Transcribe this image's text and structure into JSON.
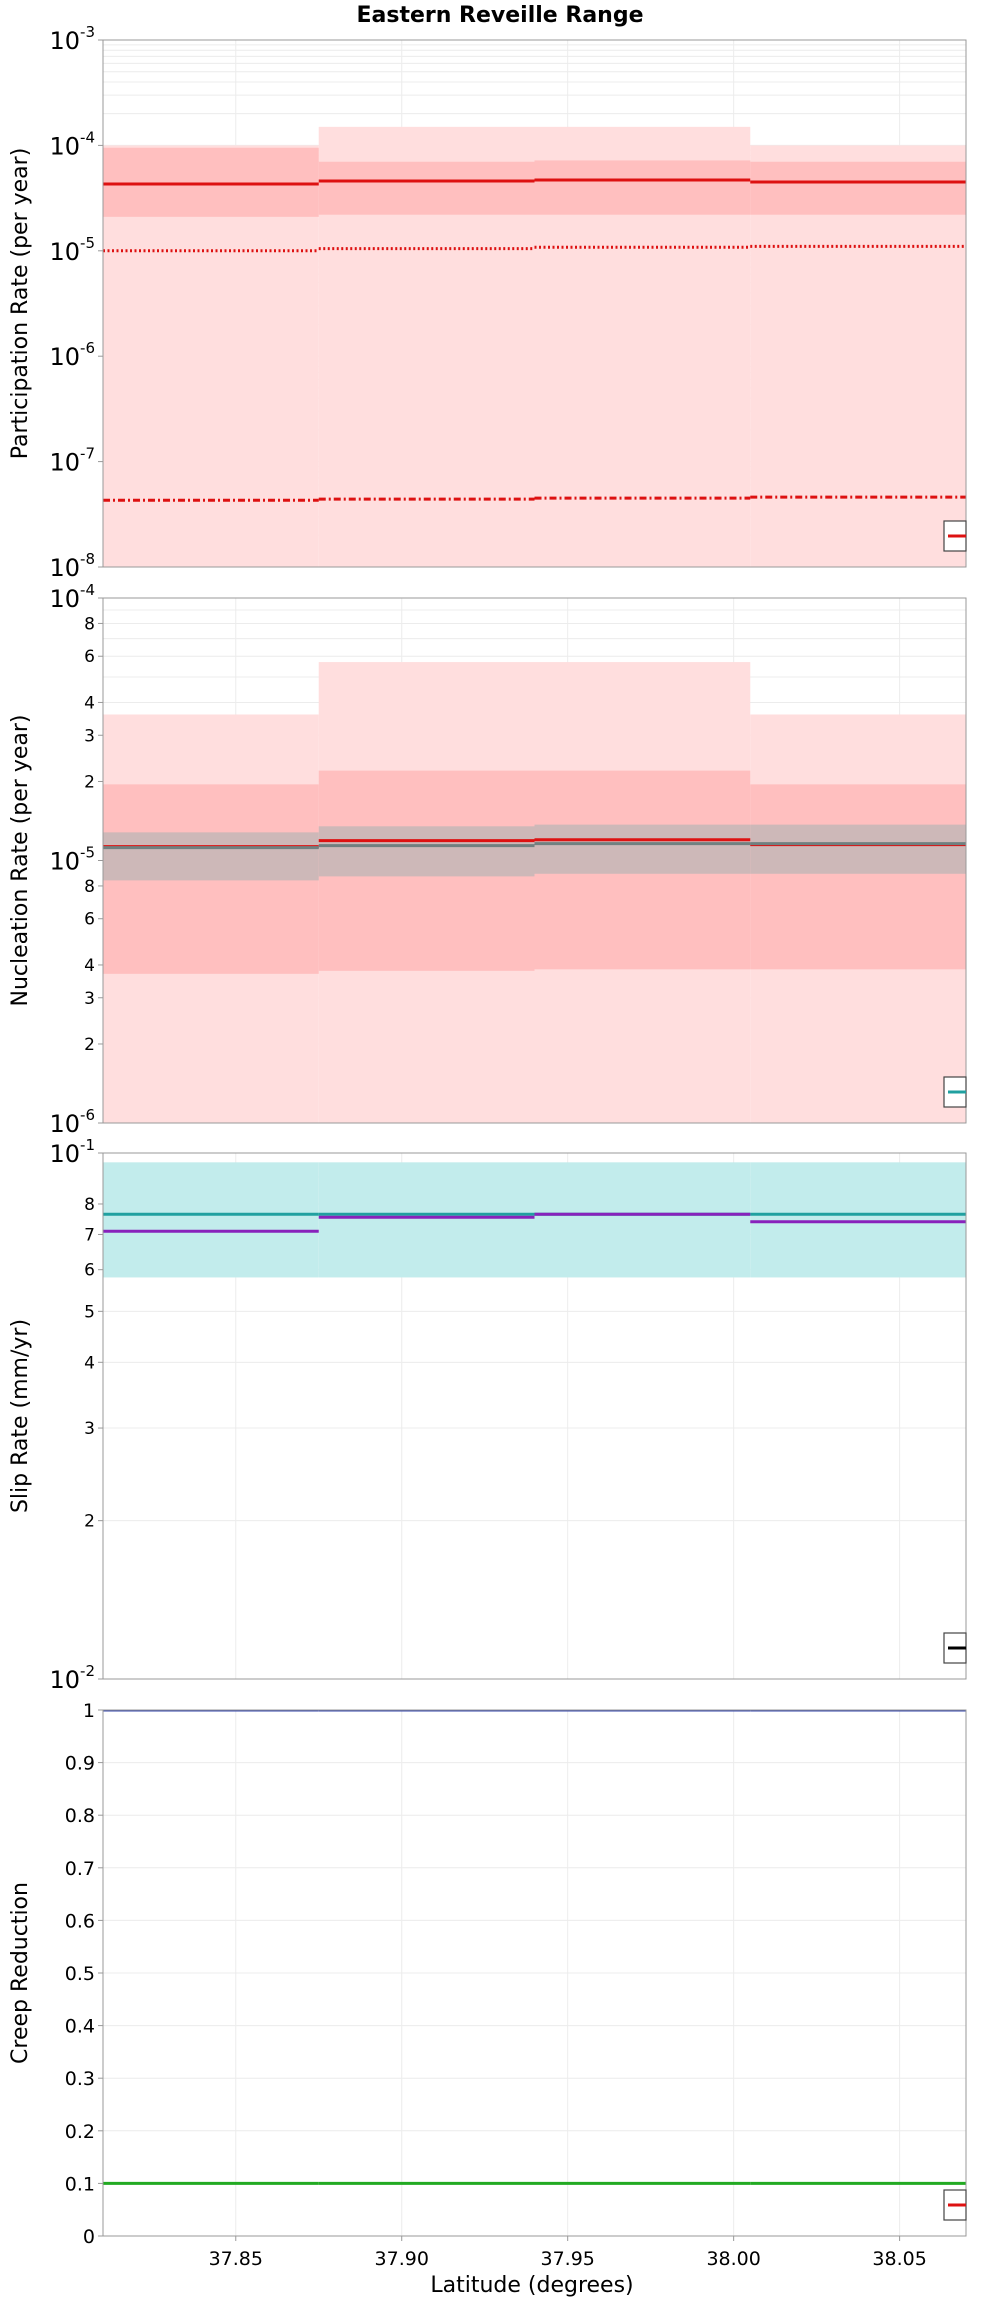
{
  "figure": {
    "title": "Eastern Reveille Range",
    "xlabel": "Latitude (degrees)"
  },
  "chart_data": [
    {
      "type": "line",
      "id": "participation",
      "title": "Eastern Reveille Range",
      "ylabel": "Participation Rate (per year)",
      "yscale": "log",
      "ylim": [
        1e-08,
        0.001
      ],
      "xlim": [
        37.81,
        38.07
      ],
      "x_ticks": [
        "37.85",
        "37.90",
        "37.95",
        "38.00",
        "38.05"
      ],
      "y_ticks": [
        {
          "value": 1e-08,
          "base": "10",
          "exp": "-8"
        },
        {
          "value": 1e-07,
          "base": "10",
          "exp": "-7"
        },
        {
          "value": 1e-06,
          "base": "10",
          "exp": "-6"
        },
        {
          "value": 1e-05,
          "base": "10",
          "exp": "-5"
        },
        {
          "value": 0.0001,
          "base": "10",
          "exp": "-4"
        },
        {
          "value": 0.001,
          "base": "10",
          "exp": "-3"
        }
      ],
      "segment_edges": [
        37.81,
        37.875,
        37.94,
        38.005,
        38.07
      ],
      "bands": [
        {
          "color": "#ffdede",
          "lower": [
            1e-08,
            1e-08,
            1e-08,
            1e-08
          ],
          "upper": [
            0.0001,
            0.00015,
            0.00015,
            0.0001
          ]
        },
        {
          "color": "#ffbfbf",
          "lower": [
            2.1e-05,
            2.2e-05,
            2.2e-05,
            2.2e-05
          ],
          "upper": [
            9.5e-05,
            7e-05,
            7.2e-05,
            7e-05
          ]
        }
      ],
      "series": [
        {
          "style": "solid",
          "color": "#dd1111",
          "values": [
            4.3e-05,
            4.6e-05,
            4.7e-05,
            4.5e-05
          ]
        },
        {
          "style": "dotted",
          "color": "#dd1111",
          "values": [
            1e-05,
            1.05e-05,
            1.08e-05,
            1.1e-05
          ]
        },
        {
          "style": "dashdot",
          "color": "#dd1111",
          "values": [
            4.3e-08,
            4.4e-08,
            4.5e-08,
            4.6e-08
          ]
        }
      ],
      "legend": {
        "position": "bottom-right",
        "color": "#dd1111"
      }
    },
    {
      "type": "line",
      "id": "nucleation",
      "ylabel": "Nucleation Rate (per year)",
      "yscale": "log",
      "ylim": [
        1e-06,
        0.0001
      ],
      "xlim": [
        37.81,
        38.07
      ],
      "y_ticks": [
        {
          "value": 1e-06,
          "base": "10",
          "exp": "-6"
        },
        {
          "value": 2e-06,
          "label": "2"
        },
        {
          "value": 3e-06,
          "label": "3"
        },
        {
          "value": 4e-06,
          "label": "4"
        },
        {
          "value": 6e-06,
          "label": "6"
        },
        {
          "value": 8e-06,
          "label": "8"
        },
        {
          "value": 1e-05,
          "base": "10",
          "exp": "-5"
        },
        {
          "value": 2e-05,
          "label": "2"
        },
        {
          "value": 3e-05,
          "label": "3"
        },
        {
          "value": 4e-05,
          "label": "4"
        },
        {
          "value": 6e-05,
          "label": "6"
        },
        {
          "value": 8e-05,
          "label": "8"
        },
        {
          "value": 0.0001,
          "base": "10",
          "exp": "-4"
        }
      ],
      "segment_edges": [
        37.81,
        37.875,
        37.94,
        38.005,
        38.07
      ],
      "bands": [
        {
          "color": "#ffdede",
          "lower": [
            1e-06,
            1e-06,
            1e-06,
            1e-06
          ],
          "upper": [
            3.6e-05,
            5.7e-05,
            5.7e-05,
            3.6e-05
          ]
        },
        {
          "color": "#ffbfbf",
          "lower": [
            3.7e-06,
            3.8e-06,
            3.85e-06,
            3.85e-06
          ],
          "upper": [
            1.95e-05,
            2.2e-05,
            2.2e-05,
            1.95e-05
          ]
        },
        {
          "color": "#cdb8b8",
          "lower": [
            8.4e-06,
            8.7e-06,
            8.9e-06,
            8.9e-06
          ],
          "upper": [
            1.28e-05,
            1.35e-05,
            1.37e-05,
            1.37e-05
          ]
        }
      ],
      "series": [
        {
          "style": "solid",
          "color": "#dd1111",
          "values": [
            1.13e-05,
            1.19e-05,
            1.2e-05,
            1.15e-05
          ]
        },
        {
          "style": "solid",
          "color": "#708080",
          "values": [
            1.12e-05,
            1.14e-05,
            1.16e-05,
            1.16e-05
          ]
        }
      ],
      "legend": {
        "position": "bottom-right",
        "color": "#20a0a0"
      }
    },
    {
      "type": "line",
      "id": "slip",
      "ylabel": "Slip Rate (mm/yr)",
      "yscale": "log",
      "ylim": [
        0.01,
        0.1
      ],
      "xlim": [
        37.81,
        38.07
      ],
      "y_ticks": [
        {
          "value": 0.01,
          "base": "10",
          "exp": "-2"
        },
        {
          "value": 0.02,
          "label": "2"
        },
        {
          "value": 0.03,
          "label": "3"
        },
        {
          "value": 0.04,
          "label": "4"
        },
        {
          "value": 0.05,
          "label": "5"
        },
        {
          "value": 0.06,
          "label": "6"
        },
        {
          "value": 0.07,
          "label": "7"
        },
        {
          "value": 0.08,
          "label": "8"
        },
        {
          "value": 0.1,
          "base": "10",
          "exp": "-1"
        }
      ],
      "segment_edges": [
        37.81,
        37.875,
        37.94,
        38.005,
        38.07
      ],
      "bands": [
        {
          "color": "#c2ecec",
          "lower": [
            0.058,
            0.058,
            0.058,
            0.058
          ],
          "upper": [
            0.096,
            0.096,
            0.096,
            0.096
          ]
        }
      ],
      "series": [
        {
          "style": "solid",
          "color": "#20a0a0",
          "values": [
            0.0765,
            0.0765,
            0.0765,
            0.0765
          ]
        },
        {
          "style": "solid",
          "color": "#8822bb",
          "values": [
            0.071,
            0.0755,
            0.0765,
            0.074
          ]
        }
      ],
      "legend": {
        "position": "bottom-right",
        "color": "#000000"
      }
    },
    {
      "type": "line",
      "id": "creep",
      "ylabel": "Creep Reduction",
      "yscale": "linear",
      "ylim": [
        0,
        1
      ],
      "xlim": [
        37.81,
        38.07
      ],
      "y_ticks": [
        {
          "value": 0,
          "label": "0"
        },
        {
          "value": 0.1,
          "label": "0.1"
        },
        {
          "value": 0.2,
          "label": "0.2"
        },
        {
          "value": 0.3,
          "label": "0.3"
        },
        {
          "value": 0.4,
          "label": "0.4"
        },
        {
          "value": 0.5,
          "label": "0.5"
        },
        {
          "value": 0.6,
          "label": "0.6"
        },
        {
          "value": 0.7,
          "label": "0.7"
        },
        {
          "value": 0.8,
          "label": "0.8"
        },
        {
          "value": 0.9,
          "label": "0.9"
        },
        {
          "value": 1,
          "label": "1"
        }
      ],
      "segment_edges": [
        37.81,
        37.875,
        37.94,
        38.005,
        38.07
      ],
      "bands": [],
      "series": [
        {
          "style": "solid",
          "color": "#3344aa",
          "values": [
            1,
            1,
            1,
            1
          ]
        },
        {
          "style": "solid",
          "color": "#22aa22",
          "values": [
            0.1,
            0.1,
            0.1,
            0.1
          ]
        }
      ],
      "legend": {
        "position": "bottom-right",
        "color": "#dd1111"
      }
    }
  ]
}
